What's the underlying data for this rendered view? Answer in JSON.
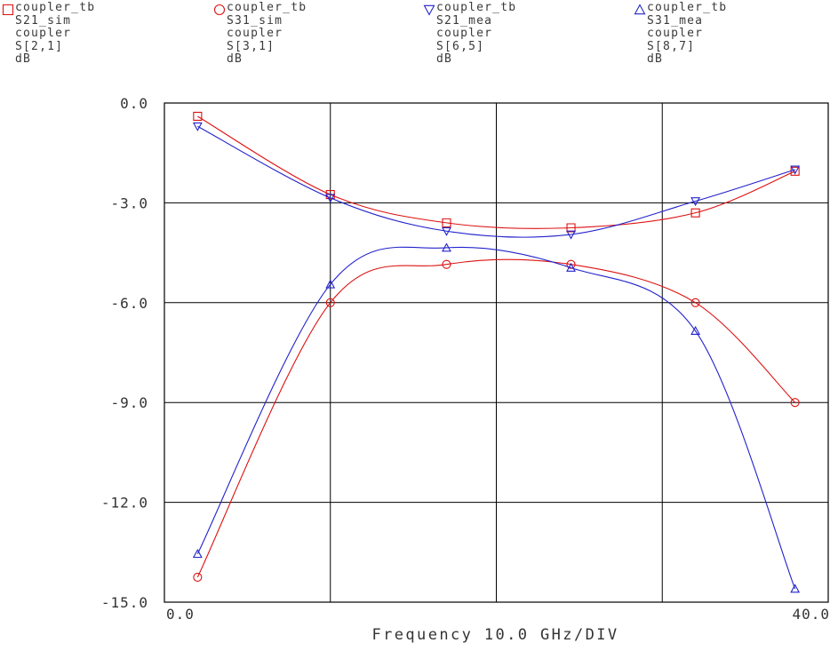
{
  "legend": [
    {
      "marker": "square",
      "color": "#dd1111",
      "lines": [
        "coupler_tb",
        "S21_sim",
        "coupler",
        "S[2,1]",
        "dB"
      ]
    },
    {
      "marker": "circle",
      "color": "#dd1111",
      "lines": [
        "coupler_tb",
        "S31_sim",
        "coupler",
        "S[3,1]",
        "dB"
      ]
    },
    {
      "marker": "triangle-down",
      "color": "#2222cc",
      "lines": [
        "coupler_tb",
        "S21_mea",
        "coupler",
        "S[6,5]",
        "dB"
      ]
    },
    {
      "marker": "triangle-up",
      "color": "#2222cc",
      "lines": [
        "coupler_tb",
        "S31_mea",
        "coupler",
        "S[8,7]",
        "dB"
      ]
    }
  ],
  "chart_data": {
    "type": "line",
    "xlabel": "Frequency 10.0 GHz/DIV",
    "xlim": [
      0,
      40
    ],
    "ylim": [
      -15,
      0
    ],
    "x_tick_labels": [
      "0.0",
      "40.0"
    ],
    "y_ticks": [
      0,
      -3,
      -6,
      -9,
      -12,
      -15
    ],
    "y_tick_labels": [
      "0.0",
      "-3.0",
      "-6.0",
      "-9.0",
      "-12.0",
      "-15.0"
    ],
    "grid": true,
    "series": [
      {
        "name": "S21_sim",
        "color": "#dd1111",
        "marker": "square",
        "x": [
          2,
          10,
          17,
          24.5,
          32,
          38
        ],
        "y": [
          -0.4,
          -2.75,
          -3.6,
          -3.75,
          -3.3,
          -2.05
        ]
      },
      {
        "name": "S31_sim",
        "color": "#dd1111",
        "marker": "circle",
        "x": [
          2,
          10,
          17,
          24.5,
          32,
          38
        ],
        "y": [
          -14.25,
          -6.0,
          -4.85,
          -4.85,
          -6.0,
          -9.0
        ]
      },
      {
        "name": "S21_mea",
        "color": "#2222cc",
        "marker": "triangle-down",
        "x": [
          2,
          10,
          17,
          24.5,
          32,
          38
        ],
        "y": [
          -0.7,
          -2.85,
          -3.85,
          -3.95,
          -2.95,
          -2.0
        ]
      },
      {
        "name": "S31_mea",
        "color": "#2222cc",
        "marker": "triangle-up",
        "x": [
          2,
          10,
          17,
          24.5,
          32,
          38
        ],
        "y": [
          -13.55,
          -5.45,
          -4.35,
          -4.95,
          -6.85,
          -14.6
        ]
      }
    ]
  }
}
